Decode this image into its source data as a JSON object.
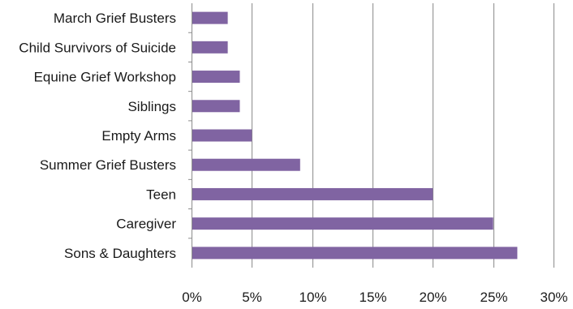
{
  "chart_data": {
    "type": "bar",
    "orientation": "horizontal",
    "categories": [
      "March Grief Busters",
      "Child Survivors of Suicide",
      "Equine Grief Workshop",
      "Siblings",
      "Empty Arms",
      "Summer Grief Busters",
      "Teen",
      "Caregiver",
      "Sons & Daughters"
    ],
    "values": [
      3,
      3,
      4,
      4,
      5,
      9,
      20,
      25,
      27
    ],
    "xlim": [
      0,
      30
    ],
    "x_ticks": [
      "0%",
      "5%",
      "10%",
      "15%",
      "20%",
      "25%",
      "30%"
    ],
    "grid": true,
    "bar_color": "#8064a2",
    "title": "",
    "xlabel": "",
    "ylabel": ""
  }
}
